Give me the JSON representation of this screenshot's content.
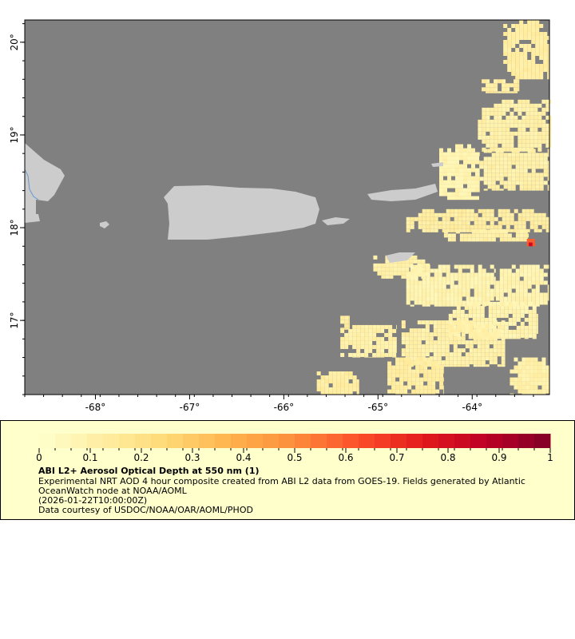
{
  "map": {
    "x_ticks": [
      "-68°",
      "-67°",
      "-66°",
      "-65°",
      "-64°"
    ],
    "x_tick_values": [
      -68,
      -67,
      -66,
      -65,
      -64
    ],
    "y_ticks": [
      "20°",
      "19°",
      "18°",
      "17°"
    ],
    "y_tick_values": [
      20,
      19,
      18,
      17
    ],
    "lon_range": [
      -68.75,
      -63.18
    ],
    "lat_range": [
      16.2,
      20.24
    ],
    "colors": {
      "ocean_nodata": "#808080",
      "land": "#cccccc",
      "river": "#6699cc"
    },
    "aod_patches": [
      {
        "lon": [
          -63.67,
          -63.18
        ],
        "lat": [
          19.6,
          20.24
        ],
        "aod": 0.12
      },
      {
        "lon": [
          -63.94,
          -63.16
        ],
        "lat": [
          18.82,
          19.38
        ],
        "aod": 0.1
      },
      {
        "lon": [
          -63.9,
          -63.5
        ],
        "lat": [
          19.45,
          19.6
        ],
        "aod": 0.12
      },
      {
        "lon": [
          -64.35,
          -63.92
        ],
        "lat": [
          18.3,
          18.9
        ],
        "aod": 0.08
      },
      {
        "lon": [
          -63.92,
          -63.18
        ],
        "lat": [
          18.4,
          18.85
        ],
        "aod": 0.1
      },
      {
        "lon": [
          -64.7,
          -63.18
        ],
        "lat": [
          17.95,
          18.2
        ],
        "aod": 0.12
      },
      {
        "lon": [
          -64.3,
          -63.4
        ],
        "lat": [
          17.85,
          17.98
        ],
        "aod": 0.1
      },
      {
        "lon": [
          -65.05,
          -64.45
        ],
        "lat": [
          17.45,
          17.7
        ],
        "aod": 0.1
      },
      {
        "lon": [
          -64.7,
          -63.75
        ],
        "lat": [
          17.15,
          17.6
        ],
        "aod": 0.08
      },
      {
        "lon": [
          -63.75,
          -63.18
        ],
        "lat": [
          17.15,
          17.6
        ],
        "aod": 0.08
      },
      {
        "lon": [
          -64.25,
          -63.3
        ],
        "lat": [
          16.8,
          17.2
        ],
        "aod": 0.08
      },
      {
        "lon": [
          -65.4,
          -64.8
        ],
        "lat": [
          16.6,
          16.95
        ],
        "aod": 0.1
      },
      {
        "lon": [
          -64.75,
          -63.65
        ],
        "lat": [
          16.5,
          17.0
        ],
        "aod": 0.1
      },
      {
        "lon": [
          -65.65,
          -65.2
        ],
        "lat": [
          16.2,
          16.45
        ],
        "aod": 0.12
      },
      {
        "lon": [
          -64.9,
          -64.3
        ],
        "lat": [
          16.2,
          16.6
        ],
        "aod": 0.12
      },
      {
        "lon": [
          -63.6,
          -63.18
        ],
        "lat": [
          16.2,
          16.6
        ],
        "aod": 0.1
      },
      {
        "lon": [
          -65.4,
          -65.3
        ],
        "lat": [
          16.9,
          17.05
        ],
        "aod": 0.12
      },
      {
        "lon": [
          -63.42,
          -63.33
        ],
        "lat": [
          17.8,
          17.88
        ],
        "aod": 0.6
      },
      {
        "lon": [
          -63.4,
          -63.36
        ],
        "lat": [
          17.8,
          17.84
        ],
        "aod": 0.85
      }
    ]
  },
  "colorbar": {
    "min": 0,
    "max": 1,
    "tick_labels": [
      "0",
      "0.1",
      "0.2",
      "0.3",
      "0.4",
      "0.5",
      "0.6",
      "0.7",
      "0.8",
      "0.9",
      "1"
    ],
    "colors": [
      "#ffffcc",
      "#ffeda0",
      "#fed976",
      "#feb24c",
      "#fd8d3c",
      "#fc4e2a",
      "#e31a1c",
      "#bd0026",
      "#800026"
    ]
  },
  "legend": {
    "title": "ABI L2+ Aerosol Optical Depth at 550 nm (1)",
    "line1": "Experimental NRT AOD 4 hour composite created from ABI L2 data from GOES-19. Fields generated by Atlantic",
    "line2": "OceanWatch node at NOAA/AOML",
    "line3": "(2026-01-22T10:00:00Z)",
    "line4": "Data courtesy of USDOC/NOAA/OAR/AOML/PHOD"
  }
}
